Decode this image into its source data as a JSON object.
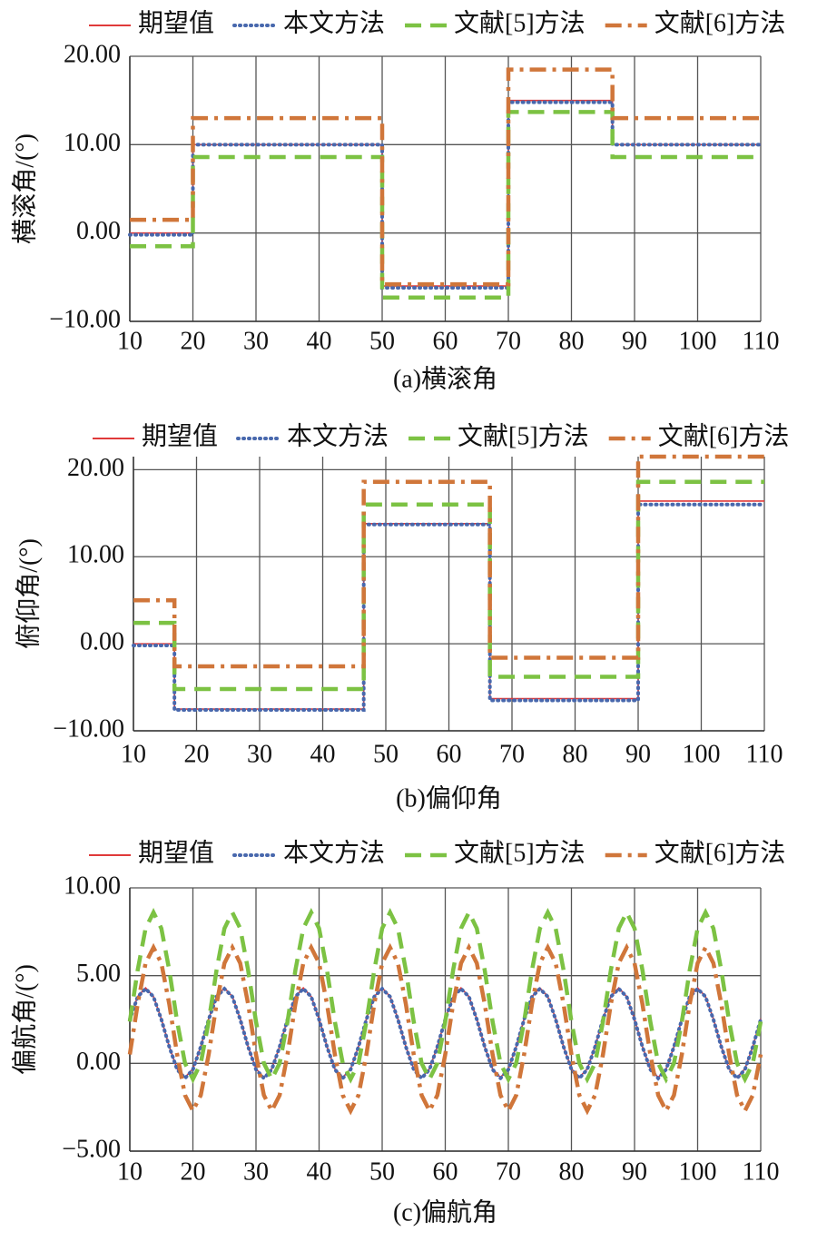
{
  "chart_data": [
    {
      "type": "line",
      "title": "(a)横滚角",
      "ylabel": "横滚角/(°)",
      "x": [
        10,
        20,
        20,
        50,
        50,
        70,
        70,
        86.5,
        86.5,
        110
      ],
      "xlim": [
        10,
        110
      ],
      "xticks": [
        10,
        20,
        30,
        40,
        50,
        60,
        70,
        80,
        90,
        100,
        110
      ],
      "ylim": [
        -10,
        20
      ],
      "yticks": [
        {
          "value": -10,
          "label": "−10.00"
        },
        {
          "value": 0,
          "label": "0.00"
        },
        {
          "value": 10,
          "label": "10.00"
        },
        {
          "value": 20,
          "label": "20.00"
        }
      ],
      "grid": true,
      "legend": "top",
      "series": [
        {
          "name": "期望值",
          "color": "#e03a3a",
          "style": "solid",
          "values": [
            0,
            0,
            10,
            10,
            -6,
            -6,
            15,
            15,
            10,
            10
          ]
        },
        {
          "name": "本文方法",
          "color": "#4868ad",
          "style": "dotted",
          "values": [
            -0.2,
            -0.2,
            10,
            10,
            -6.2,
            -6.2,
            14.8,
            14.8,
            10,
            10
          ]
        },
        {
          "name": "文献[5]方法",
          "color": "#7cc243",
          "style": "dashed",
          "values": [
            -1.5,
            -1.5,
            8.6,
            8.6,
            -7.3,
            -7.3,
            13.7,
            13.7,
            8.6,
            8.6
          ]
        },
        {
          "name": "文献[6]方法",
          "color": "#d0763a",
          "style": "dashdot",
          "values": [
            1.5,
            1.5,
            13,
            13,
            -5.8,
            -5.8,
            18.5,
            18.5,
            13,
            13
          ]
        }
      ]
    },
    {
      "type": "line",
      "title": "(b)偏仰角",
      "ylabel": "俯仰角/(°)",
      "x": [
        10,
        16.5,
        16.5,
        46.5,
        46.5,
        66.5,
        66.5,
        90,
        90,
        110
      ],
      "xlim": [
        10,
        110
      ],
      "xticks": [
        10,
        20,
        30,
        40,
        50,
        60,
        70,
        80,
        90,
        100,
        110
      ],
      "ylim": [
        -10,
        21.5
      ],
      "yticks": [
        {
          "value": -10,
          "label": "−10.00"
        },
        {
          "value": 0,
          "label": "0.00"
        },
        {
          "value": 10,
          "label": "10.00"
        },
        {
          "value": 20,
          "label": "20.00"
        }
      ],
      "grid": true,
      "legend": "top",
      "series": [
        {
          "name": "期望值",
          "color": "#e03a3a",
          "style": "solid",
          "values": [
            0,
            0,
            -7.5,
            -7.5,
            13.8,
            13.8,
            -6.3,
            -6.3,
            16.4,
            16.4
          ]
        },
        {
          "name": "本文方法",
          "color": "#4868ad",
          "style": "dotted",
          "values": [
            -0.2,
            -0.2,
            -7.6,
            -7.6,
            13.7,
            13.7,
            -6.5,
            -6.5,
            16,
            16
          ]
        },
        {
          "name": "文献[5]方法",
          "color": "#7cc243",
          "style": "dashed",
          "values": [
            2.4,
            2.4,
            -5.2,
            -5.2,
            16,
            16,
            -3.8,
            -3.8,
            18.6,
            18.6
          ]
        },
        {
          "name": "文献[6]方法",
          "color": "#d0763a",
          "style": "dashdot",
          "values": [
            5,
            5,
            -2.6,
            -2.6,
            18.6,
            18.6,
            -1.6,
            -1.6,
            21.5,
            21.5
          ]
        }
      ]
    },
    {
      "type": "line",
      "title": "(c)偏航角",
      "ylabel": "偏航角/(°)",
      "x": [
        10,
        11.25,
        12.5,
        13.75,
        15,
        16.25,
        17.5,
        18.75,
        20,
        21.25,
        22.5,
        23.75,
        25,
        26.25,
        27.5,
        28.75,
        30,
        31.25,
        32.5,
        33.75,
        35,
        36.25,
        37.5,
        38.75,
        40,
        41.25,
        42.5,
        43.75,
        45,
        46.25,
        47.5,
        48.75,
        50,
        51.25,
        52.5,
        53.75,
        55,
        56.25,
        57.5,
        58.75,
        60,
        61.25,
        62.5,
        63.75,
        65,
        66.25,
        67.5,
        68.75,
        70,
        71.25,
        72.5,
        73.75,
        75,
        76.25,
        77.5,
        78.75,
        80,
        81.25,
        82.5,
        83.75,
        85,
        86.25,
        87.5,
        88.75,
        90,
        91.25,
        92.5,
        93.75,
        95,
        96.25,
        97.5,
        98.75,
        100,
        101.25,
        102.5,
        103.75,
        105,
        106.25,
        107.5,
        108.75,
        110
      ],
      "xlim": [
        10,
        110
      ],
      "xticks": [
        10,
        20,
        30,
        40,
        50,
        60,
        70,
        80,
        90,
        100,
        110
      ],
      "ylim": [
        -5,
        10
      ],
      "yticks": [
        {
          "value": -5,
          "label": "−5.00"
        },
        {
          "value": 0,
          "label": "0.00"
        },
        {
          "value": 5,
          "label": "5.00"
        },
        {
          "value": 10,
          "label": "10.00"
        }
      ],
      "grid": true,
      "legend": "top",
      "series": [
        {
          "name": "期望值",
          "color": "#e03a3a",
          "style": "solid",
          "values": [
            2.54,
            3.81,
            4.3,
            3.81,
            2.54,
            0.96,
            -0.31,
            -0.8,
            -0.31,
            0.96,
            2.54,
            3.81,
            4.3,
            3.81,
            2.54,
            0.96,
            -0.31,
            -0.8,
            -0.31,
            0.96,
            2.54,
            3.81,
            4.3,
            3.81,
            2.54,
            0.96,
            -0.31,
            -0.8,
            -0.31,
            0.96,
            2.54,
            3.81,
            4.3,
            3.81,
            2.54,
            0.96,
            -0.31,
            -0.8,
            -0.31,
            0.96,
            2.54,
            3.81,
            4.3,
            3.81,
            2.54,
            0.96,
            -0.31,
            -0.8,
            -0.31,
            0.96,
            2.54,
            3.81,
            4.3,
            3.81,
            2.54,
            0.96,
            -0.31,
            -0.8,
            -0.31,
            0.96,
            2.54,
            3.81,
            4.3,
            3.81,
            2.54,
            0.96,
            -0.31,
            -0.8,
            -0.31,
            0.96,
            2.54,
            3.81,
            4.3,
            3.81,
            2.54,
            0.96,
            -0.31,
            -0.8,
            -0.31,
            0.96,
            2.54
          ]
        },
        {
          "name": "本文方法",
          "color": "#4868ad",
          "style": "dotted",
          "values": [
            2.5,
            3.8,
            4.25,
            3.8,
            2.5,
            0.95,
            -0.35,
            -0.85,
            -0.35,
            0.95,
            2.5,
            3.8,
            4.25,
            3.8,
            2.5,
            0.95,
            -0.35,
            -0.85,
            -0.35,
            0.95,
            2.5,
            3.8,
            4.25,
            3.8,
            2.5,
            0.95,
            -0.35,
            -0.85,
            -0.35,
            0.95,
            2.5,
            3.8,
            4.25,
            3.8,
            2.5,
            0.95,
            -0.35,
            -0.85,
            -0.35,
            0.95,
            2.5,
            3.8,
            4.25,
            3.8,
            2.5,
            0.95,
            -0.35,
            -0.85,
            -0.35,
            0.95,
            2.5,
            3.8,
            4.25,
            3.8,
            2.5,
            0.95,
            -0.35,
            -0.85,
            -0.35,
            0.95,
            2.5,
            3.8,
            4.25,
            3.8,
            2.5,
            0.95,
            -0.35,
            -0.85,
            -0.35,
            0.95,
            2.5,
            3.8,
            4.25,
            3.8,
            2.5,
            0.95,
            -0.35,
            -0.85,
            -0.35,
            0.95,
            2.5
          ]
        },
        {
          "name": "文献[5]方法",
          "color": "#7cc243",
          "style": "dashed",
          "values": [
            2.38,
            5.32,
            7.69,
            8.6,
            7.69,
            5.32,
            2.38,
            0.01,
            -0.9,
            0.01,
            2.38,
            5.32,
            7.69,
            8.6,
            7.69,
            5.32,
            2.38,
            0.01,
            -0.9,
            0.01,
            2.38,
            5.32,
            7.69,
            8.6,
            7.69,
            5.32,
            2.38,
            0.01,
            -0.9,
            0.01,
            2.38,
            5.32,
            7.69,
            8.6,
            7.69,
            5.32,
            2.38,
            0.01,
            -0.9,
            0.01,
            2.38,
            5.32,
            7.69,
            8.6,
            7.69,
            5.32,
            2.38,
            0.01,
            -0.9,
            0.01,
            2.38,
            5.32,
            7.69,
            8.6,
            7.69,
            5.32,
            2.38,
            0.01,
            -0.9,
            0.01,
            2.38,
            5.32,
            7.69,
            8.6,
            7.69,
            5.32,
            2.38,
            0.01,
            -0.9,
            0.01,
            2.38,
            5.32,
            7.69,
            8.6,
            7.69,
            5.32,
            2.38,
            0.01,
            -0.9,
            0.01,
            2.38
          ]
        },
        {
          "name": "文献[6]方法",
          "color": "#d0763a",
          "style": "dashdot",
          "values": [
            0.51,
            3.39,
            5.71,
            6.6,
            5.71,
            3.39,
            0.51,
            -1.81,
            -2.7,
            -1.81,
            0.51,
            3.39,
            5.71,
            6.6,
            5.71,
            3.39,
            0.51,
            -1.81,
            -2.7,
            -1.81,
            0.51,
            3.39,
            5.71,
            6.6,
            5.71,
            3.39,
            0.51,
            -1.81,
            -2.7,
            -1.81,
            0.51,
            3.39,
            5.71,
            6.6,
            5.71,
            3.39,
            0.51,
            -1.81,
            -2.7,
            -1.81,
            0.51,
            3.39,
            5.71,
            6.6,
            5.71,
            3.39,
            0.51,
            -1.81,
            -2.7,
            -1.81,
            0.51,
            3.39,
            5.71,
            6.6,
            5.71,
            3.39,
            0.51,
            -1.81,
            -2.7,
            -1.81,
            0.51,
            3.39,
            5.71,
            6.6,
            5.71,
            3.39,
            0.51,
            -1.81,
            -2.7,
            -1.81,
            0.51,
            3.39,
            5.71,
            6.6,
            5.71,
            3.39,
            0.51,
            -1.81,
            -2.7,
            -1.81,
            0.51
          ]
        }
      ]
    }
  ]
}
